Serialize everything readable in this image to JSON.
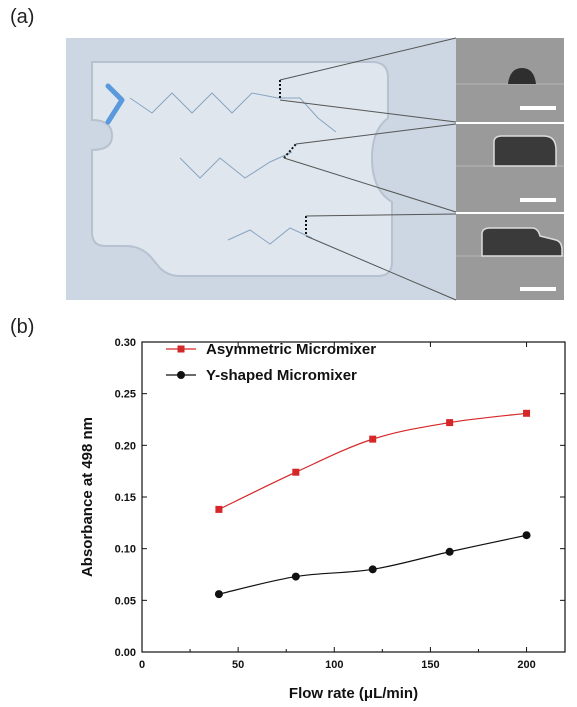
{
  "panels": {
    "a_label": "(a)",
    "b_label": "(b)"
  },
  "colors": {
    "asymmetric": "#d62728",
    "yshaped": "#111111",
    "channel": "#4a90d9",
    "chip_bg": "#cdd7e3",
    "sem_bg": "#9a9a9a"
  },
  "chart_data": {
    "type": "line",
    "xlabel": "Flow rate (μL/min)",
    "ylabel": "Absorbance at 498 nm",
    "xlim": [
      0,
      220
    ],
    "ylim": [
      0.0,
      0.3
    ],
    "xticks": [
      "0",
      "50",
      "100",
      "150",
      "200"
    ],
    "yticks": [
      "0.00",
      "0.05",
      "0.10",
      "0.15",
      "0.20",
      "0.25",
      "0.30"
    ],
    "legend_placement": "top-left",
    "series": [
      {
        "name": "Asymmetric Micromixer",
        "marker": "square",
        "color": "#d62728",
        "x": [
          40,
          80,
          120,
          160,
          200
        ],
        "y": [
          0.138,
          0.174,
          0.206,
          0.222,
          0.231
        ]
      },
      {
        "name": "Y-shaped Micromixer",
        "marker": "circle",
        "color": "#111111",
        "x": [
          40,
          80,
          120,
          160,
          200
        ],
        "y": [
          0.056,
          0.073,
          0.08,
          0.097,
          0.113
        ]
      }
    ]
  }
}
